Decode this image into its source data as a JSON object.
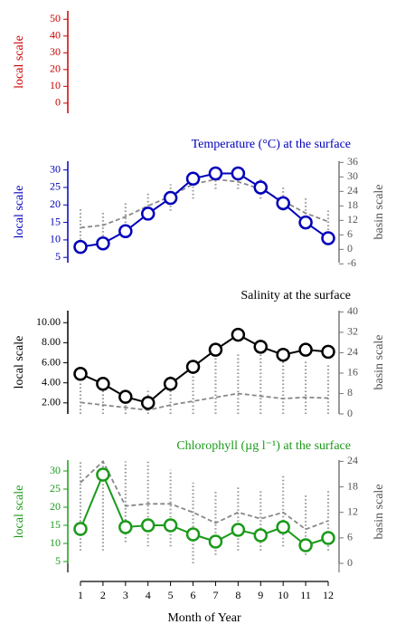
{
  "chart_data": [
    {
      "type": "line",
      "ylabel": "local scale",
      "axis_color": "#cc0000",
      "ylim": [
        -6,
        55
      ],
      "yticks": [
        0,
        10,
        20,
        30,
        40,
        50
      ],
      "series": []
    },
    {
      "type": "line",
      "title": "Temperature (°C) at the surface",
      "ylabel": "local scale",
      "y2label": "basin scale",
      "axis_color": "#0000bb",
      "ylim": [
        3.5,
        32.5
      ],
      "yticks": [
        5,
        10,
        15,
        20,
        25,
        30
      ],
      "y2lim": [
        -5.5,
        36.5
      ],
      "y2ticks": [
        -6,
        0,
        6,
        12,
        18,
        24,
        30,
        36
      ],
      "series": [
        {
          "color": "#0000bb",
          "values": [
            8,
            9,
            12.5,
            17.5,
            22,
            27.5,
            29,
            29,
            25,
            20.5,
            15,
            10.5
          ]
        },
        {
          "color": "#888888",
          "axis": "y2",
          "values": [
            9,
            10,
            13.5,
            18,
            22,
            27,
            29,
            28,
            25,
            20,
            15,
            11.5
          ],
          "range_low": [
            1,
            4,
            8,
            12,
            16,
            21,
            25,
            25,
            21,
            16,
            10,
            2
          ],
          "range_high": [
            17,
            16,
            20,
            24,
            27,
            30,
            31,
            31,
            29,
            26,
            22,
            16
          ]
        }
      ]
    },
    {
      "type": "line",
      "title": "Salinity at the surface",
      "ylabel": "local scale",
      "y2label": "basin scale",
      "axis_color": "#000000",
      "ylim": [
        0.9,
        11.2
      ],
      "yticks": [
        {
          "value": 2,
          "label": "2.00"
        },
        {
          "value": 4,
          "label": "4.00"
        },
        {
          "value": 6,
          "label": "6.00"
        },
        {
          "value": 8,
          "label": "8.00"
        },
        {
          "value": 10,
          "label": "10.00"
        }
      ],
      "y2lim": [
        0,
        40.5
      ],
      "y2ticks": [
        0,
        8,
        16,
        24,
        32,
        40
      ],
      "series": [
        {
          "color": "#000000",
          "values": [
            4.9,
            3.9,
            2.6,
            2.0,
            3.9,
            5.6,
            7.3,
            8.8,
            7.6,
            6.8,
            7.3,
            7.1
          ]
        },
        {
          "color": "#888888",
          "axis": "y2",
          "values": [
            4.5,
            3.5,
            2.5,
            1.5,
            3.5,
            5,
            6.5,
            8,
            7,
            6,
            6.5,
            6.2
          ],
          "range_low": [
            0,
            0,
            0,
            0,
            0,
            0,
            0,
            0,
            0,
            0,
            0,
            0
          ],
          "range_high": [
            12,
            10,
            9,
            10,
            15,
            20,
            22,
            24,
            24,
            23,
            21,
            19
          ]
        }
      ]
    },
    {
      "type": "line",
      "title": "Chlorophyll (µg l⁻¹) at the surface",
      "ylabel": "local scale",
      "y2label": "basin scale",
      "axis_color": "#1a9a1a",
      "xlabel": "Month of Year",
      "x": [
        1,
        2,
        3,
        4,
        5,
        6,
        7,
        8,
        9,
        10,
        11,
        12
      ],
      "xlim": [
        0.45,
        12.55
      ],
      "xticks": [
        1,
        2,
        3,
        4,
        5,
        6,
        7,
        8,
        9,
        10,
        11,
        12
      ],
      "ylim": [
        4.5,
        33
      ],
      "yticks": [
        5,
        10,
        15,
        20,
        25,
        30
      ],
      "y2lim": [
        0,
        24.3
      ],
      "y2ticks": [
        0,
        6,
        12,
        18,
        24
      ],
      "series": [
        {
          "color": "#1a9a1a",
          "values": [
            14,
            29,
            14.5,
            15,
            15,
            12.5,
            10.5,
            13.75,
            12.25,
            14.5,
            9.5,
            11.5
          ]
        },
        {
          "color": "#888888",
          "axis": "y2",
          "values": [
            19,
            24,
            13.5,
            14,
            14,
            12,
            9.5,
            12,
            10.5,
            12,
            8,
            10
          ],
          "range_low": [
            3,
            3,
            5,
            4,
            4,
            0,
            2,
            3,
            3,
            4,
            2,
            3
          ],
          "range_high": [
            24,
            24.3,
            24,
            24,
            22,
            19,
            17,
            18,
            17,
            21,
            16,
            17
          ]
        }
      ]
    }
  ]
}
